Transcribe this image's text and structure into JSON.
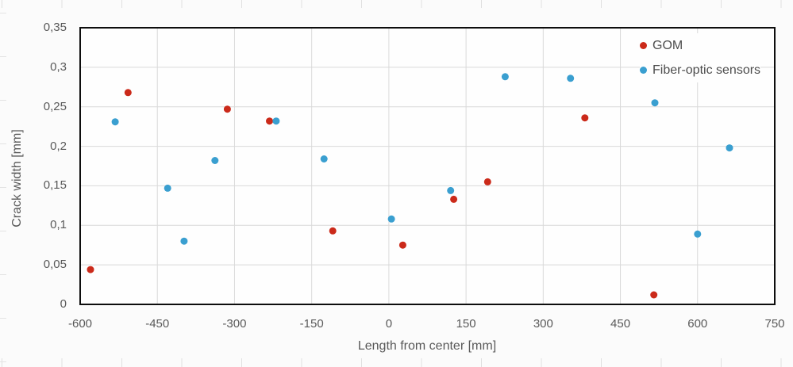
{
  "chart_data": {
    "type": "scatter",
    "title": "",
    "xlabel": "Length from center [mm]",
    "ylabel": "Crack width [mm]",
    "xlim": [
      -600,
      750
    ],
    "ylim": [
      0,
      0.35
    ],
    "grid": "both",
    "legend_position": "top-right-inside",
    "marker_radius": 4.5,
    "x_ticks": {
      "values": [
        -600,
        -450,
        -300,
        -150,
        0,
        150,
        300,
        450,
        600,
        750
      ],
      "labels": [
        "-600",
        "-450",
        "-300",
        "-150",
        "0",
        "150",
        "300",
        "450",
        "600",
        "750"
      ]
    },
    "y_ticks": {
      "values": [
        0,
        0.05,
        0.1,
        0.15,
        0.2,
        0.25,
        0.3,
        0.35
      ],
      "labels": [
        "0",
        "0,05",
        "0,1",
        "0,15",
        "0,2",
        "0,25",
        "0,3",
        "0,35"
      ]
    },
    "series": [
      {
        "name": "GOM",
        "color": "#cb2a1a",
        "marker": "circle",
        "points": [
          [
            -580,
            0.044
          ],
          [
            -507,
            0.268
          ],
          [
            -314,
            0.247
          ],
          [
            -232,
            0.232
          ],
          [
            -109,
            0.093
          ],
          [
            27,
            0.075
          ],
          [
            126,
            0.133
          ],
          [
            192,
            0.155
          ],
          [
            381,
            0.236
          ],
          [
            515,
            0.012
          ]
        ]
      },
      {
        "name": "Fiber-optic sensors",
        "color": "#3a9fd0",
        "marker": "circle",
        "points": [
          [
            -532,
            0.231
          ],
          [
            -430,
            0.147
          ],
          [
            -398,
            0.08
          ],
          [
            -338,
            0.182
          ],
          [
            -219,
            0.232
          ],
          [
            -126,
            0.184
          ],
          [
            5,
            0.108
          ],
          [
            120,
            0.144
          ],
          [
            226,
            0.288
          ],
          [
            353,
            0.286
          ],
          [
            517,
            0.255
          ],
          [
            600,
            0.089
          ],
          [
            662,
            0.198
          ]
        ]
      }
    ],
    "style": {
      "page_bg": "#fbfbfb",
      "plot_bg": "#fefefe",
      "grid_color": "#d9d9d9",
      "border_color": "#0d0d0d",
      "tick_text_color": "#595959",
      "legend_text_color": "#4d4d4d"
    }
  }
}
